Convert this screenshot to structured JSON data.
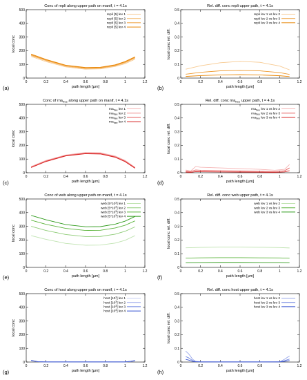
{
  "figure": {
    "panel_labels": [
      "(a)",
      "(b)",
      "(c)",
      "(d)",
      "(e)",
      "(f)",
      "(g)",
      "(h)"
    ]
  },
  "chart_data": [
    {
      "id": "a",
      "type": "line",
      "title": "Conc of repli along upper path on manif, t = 4.1s",
      "xlabel": "path length [µm]",
      "ylabel": "local conc",
      "xlim": [
        0,
        1.2
      ],
      "ylim": [
        0,
        500
      ],
      "xticks": [
        "0",
        "0.2",
        "0.4",
        "0.6",
        "0.8",
        "1",
        "1.2"
      ],
      "yticks": [
        "0",
        "100",
        "200",
        "300",
        "400",
        "500"
      ],
      "legend_position": "top-right",
      "x": [
        0.05,
        0.2,
        0.4,
        0.6,
        0.75,
        0.9,
        1.0,
        1.1
      ],
      "series": [
        {
          "name": "repli [5] lev 1",
          "color": "#f7c98f",
          "values": [
            158,
            120,
            82,
            65,
            67,
            85,
            105,
            138
          ]
        },
        {
          "name": "repli [5] lev 2",
          "color": "#f4b25e",
          "values": [
            165,
            127,
            87,
            70,
            72,
            90,
            112,
            146
          ]
        },
        {
          "name": "repli [5] lev 3",
          "color": "#ee9a30",
          "values": [
            170,
            132,
            91,
            74,
            76,
            94,
            117,
            151
          ]
        },
        {
          "name": "repli [5] lev 4",
          "color": "#e88400",
          "values": [
            175,
            136,
            94,
            77,
            79,
            97,
            121,
            155
          ]
        }
      ]
    },
    {
      "id": "b",
      "type": "line",
      "title": "Rel. diff. conc repli upper path, t = 4.1s",
      "xlabel": "path length [µm]",
      "ylabel": "local conc rel. diff.",
      "xlim": [
        0,
        1.2
      ],
      "ylim": [
        0,
        0.5
      ],
      "xticks": [
        "0",
        "0.2",
        "0.4",
        "0.6",
        "0.8",
        "1",
        "1.2"
      ],
      "yticks": [
        "0",
        "0.1",
        "0.2",
        "0.3",
        "0.4",
        "0.5"
      ],
      "legend_position": "top-right",
      "x": [
        0.05,
        0.2,
        0.4,
        0.6,
        0.8,
        1.0,
        1.1
      ],
      "series": [
        {
          "name": "repli lev 1 vs lev 2",
          "color": "#f7c98f",
          "values": [
            0.065,
            0.09,
            0.112,
            0.122,
            0.115,
            0.088,
            0.06
          ]
        },
        {
          "name": "repli lev 2 vs lev 3",
          "color": "#ee9a30",
          "values": [
            0.028,
            0.042,
            0.053,
            0.056,
            0.053,
            0.04,
            0.027
          ]
        },
        {
          "name": "repli lev 3 vs lev 4",
          "color": "#e88400",
          "values": [
            0.012,
            0.018,
            0.023,
            0.025,
            0.023,
            0.017,
            0.011
          ]
        }
      ]
    },
    {
      "id": "c",
      "type": "line",
      "title_parts": [
        "Conc of rna",
        "free",
        " along upper path on manif, t = 4.1s"
      ],
      "xlabel": "path length [µm]",
      "ylabel": "local conc",
      "xlim": [
        0,
        1.2
      ],
      "ylim": [
        0,
        500
      ],
      "xticks": [
        "0",
        "0.2",
        "0.4",
        "0.6",
        "0.8",
        "1",
        "1.2"
      ],
      "yticks": [
        "0",
        "100",
        "200",
        "300",
        "400",
        "500"
      ],
      "legend_position": "top-right",
      "legend_parts": {
        "base": "rna",
        "sub": "free",
        "suffix": [
          "lev 1",
          "lev 2",
          "lev 3",
          "lev 4"
        ]
      },
      "x": [
        0.05,
        0.2,
        0.4,
        0.6,
        0.75,
        0.9,
        1.0,
        1.1
      ],
      "series": [
        {
          "color": "#f5b5b5",
          "values": [
            45,
            90,
            130,
            148,
            146,
            122,
            90,
            40
          ]
        },
        {
          "color": "#ee8a8a",
          "values": [
            42,
            87,
            127,
            144,
            142,
            118,
            86,
            37
          ]
        },
        {
          "color": "#e55a5a",
          "values": [
            40,
            84,
            125,
            141,
            139,
            115,
            83,
            35
          ]
        },
        {
          "color": "#d82020",
          "values": [
            38,
            82,
            123,
            139,
            137,
            113,
            81,
            33
          ]
        }
      ]
    },
    {
      "id": "d",
      "type": "line",
      "title_parts": [
        "Rel. diff. conc rna",
        "free",
        " upper path, t = 4.1s"
      ],
      "xlabel": "path length [µm]",
      "ylabel": "local conc rel. diff.",
      "xlim": [
        0,
        1.2
      ],
      "ylim": [
        0,
        0.5
      ],
      "xticks": [
        "0",
        "0.2",
        "0.4",
        "0.6",
        "0.8",
        "1",
        "1.2"
      ],
      "yticks": [
        "0",
        "0.1",
        "0.2",
        "0.3",
        "0.4",
        "0.5"
      ],
      "legend_position": "top-right",
      "legend_parts": {
        "base": "rna",
        "sub": "free",
        "suffix": [
          "lev 1 vs lev 2",
          "lev 2 vs lev 3",
          "lev 3 vs lev 4"
        ]
      },
      "x": [
        0.05,
        0.1,
        0.15,
        0.2,
        0.4,
        0.6,
        0.8,
        0.95,
        1.05,
        1.1
      ],
      "series": [
        {
          "color": "#f5b5b5",
          "values": [
            0.02,
            0.012,
            0.045,
            0.04,
            0.035,
            0.03,
            0.025,
            0.018,
            0.025,
            0.06
          ]
        },
        {
          "color": "#e55a5a",
          "values": [
            0.012,
            0.008,
            0.02,
            0.018,
            0.015,
            0.012,
            0.01,
            0.008,
            0.015,
            0.035
          ]
        },
        {
          "color": "#d82020",
          "values": [
            0.005,
            0.003,
            0.008,
            0.007,
            0.006,
            0.005,
            0.004,
            0.003,
            0.006,
            0.015
          ]
        }
      ]
    },
    {
      "id": "e",
      "type": "line",
      "title": "Conc of web along upper path on manif, t = 4.1s",
      "xlabel": "path length [µm]",
      "ylabel": "local conc",
      "xlim": [
        0,
        1.2
      ],
      "ylim": [
        0,
        500
      ],
      "xticks": [
        "0",
        "0.2",
        "0.4",
        "0.6",
        "0.8",
        "1",
        "1.2"
      ],
      "yticks": [
        "0",
        "100",
        "200",
        "300",
        "400",
        "500"
      ],
      "legend_position": "top-right",
      "legend_parts": {
        "base": "web [5*10",
        "sup": "3",
        "close": "]",
        "suffix": [
          "lev 1",
          "lev 2",
          "lev 3",
          "lev 4"
        ]
      },
      "x": [
        0.05,
        0.2,
        0.4,
        0.6,
        0.75,
        0.9,
        1.0,
        1.1
      ],
      "series": [
        {
          "color": "#bfe3b0",
          "values": [
            232,
            205,
            175,
            162,
            163,
            178,
            198,
            232
          ]
        },
        {
          "color": "#8dcb75",
          "values": [
            300,
            270,
            240,
            225,
            226,
            243,
            264,
            296
          ]
        },
        {
          "color": "#5cb43c",
          "values": [
            345,
            315,
            285,
            270,
            271,
            288,
            308,
            340
          ]
        },
        {
          "color": "#2e9a1a",
          "values": [
            380,
            348,
            313,
            297,
            298,
            316,
            338,
            372
          ]
        }
      ]
    },
    {
      "id": "f",
      "type": "line",
      "title": "Rel. diff. conc web upper path, t = 4.1s",
      "xlabel": "path length [µm]",
      "ylabel": "local conc rel. diff.",
      "xlim": [
        0,
        1.2
      ],
      "ylim": [
        0,
        0.5
      ],
      "xticks": [
        "0",
        "0.2",
        "0.4",
        "0.6",
        "0.8",
        "1",
        "1.2"
      ],
      "yticks": [
        "0",
        "0.1",
        "0.2",
        "0.3",
        "0.4",
        "0.5"
      ],
      "legend_position": "top-right",
      "x": [
        0.05,
        0.2,
        0.4,
        0.6,
        0.8,
        1.0,
        1.1
      ],
      "series": [
        {
          "name": "web lev 1 vs lev 2",
          "color": "#bfe3b0",
          "values": [
            0.143,
            0.146,
            0.148,
            0.148,
            0.147,
            0.145,
            0.142
          ]
        },
        {
          "name": "web lev 2 vs lev 3",
          "color": "#5cb43c",
          "values": [
            0.068,
            0.07,
            0.071,
            0.071,
            0.07,
            0.069,
            0.067
          ]
        },
        {
          "name": "web lev 3 vs lev 4",
          "color": "#2e9a1a",
          "values": [
            0.034,
            0.035,
            0.036,
            0.036,
            0.035,
            0.035,
            0.034
          ]
        }
      ]
    },
    {
      "id": "g",
      "type": "line",
      "title": "Conc of host along upper path on manif, t = 4.1s",
      "xlabel": "path length [µm]",
      "ylabel": "local conc",
      "xlim": [
        0,
        1.2
      ],
      "ylim": [
        0,
        500
      ],
      "xticks": [
        "0",
        "0.2",
        "0.4",
        "0.6",
        "0.8",
        "1",
        "1.2"
      ],
      "yticks": [
        "0",
        "100",
        "200",
        "300",
        "400",
        "500"
      ],
      "legend_position": "top-right",
      "legend_parts": {
        "base": "host [10",
        "sup": "3",
        "close": "]",
        "suffix": [
          "lev 1",
          "lev 2",
          "lev 3",
          "lev 4"
        ]
      },
      "x": [
        0.05,
        0.08,
        0.12,
        0.2,
        0.4,
        0.6,
        0.8,
        1.0,
        1.05,
        1.1
      ],
      "series": [
        {
          "color": "#c5cdf2",
          "values": [
            9,
            6,
            2,
            1,
            1,
            1,
            1,
            1,
            3,
            8
          ]
        },
        {
          "color": "#97a6ea",
          "values": [
            10,
            7,
            2,
            1,
            1,
            1,
            1,
            1,
            4,
            9
          ]
        },
        {
          "color": "#6a80e0",
          "values": [
            11,
            7,
            2,
            1,
            1,
            1,
            1,
            1,
            4,
            10
          ]
        },
        {
          "color": "#3550d0",
          "values": [
            12,
            8,
            2,
            1,
            1,
            1,
            1,
            1,
            5,
            11
          ]
        }
      ]
    },
    {
      "id": "h",
      "type": "line",
      "title": "Rel. diff. conc host upper path, t = 4.1s",
      "xlabel": "path length [µm]",
      "ylabel": "local conc rel. diff.",
      "xlim": [
        0,
        1.2
      ],
      "ylim": [
        0,
        0.5
      ],
      "xticks": [
        "0",
        "0.2",
        "0.4",
        "0.6",
        "0.8",
        "1",
        "1.2"
      ],
      "yticks": [
        "0",
        "0.1",
        "0.2",
        "0.3",
        "0.4",
        "0.5"
      ],
      "legend_position": "top-right",
      "x": [
        0.05,
        0.08,
        0.12,
        0.15,
        0.2,
        0.4,
        0.6,
        0.8,
        1.0,
        1.05,
        1.1
      ],
      "series": [
        {
          "name": "host lev 1 vs lev 2",
          "color": "#97a6ea",
          "values": [
            0.08,
            0.06,
            0.02,
            0.005,
            0.002,
            0.001,
            0.001,
            0.001,
            0.002,
            0.02,
            0.045
          ]
        },
        {
          "name": "host lev 2 vs lev 3",
          "color": "#6a80e0",
          "values": [
            0.04,
            0.03,
            0.01,
            0.003,
            0.001,
            0.001,
            0.001,
            0.001,
            0.001,
            0.01,
            0.022
          ]
        },
        {
          "name": "host lev 3 vs lev 4",
          "color": "#3550d0",
          "values": [
            0.02,
            0.014,
            0.005,
            0.002,
            0.001,
            0.001,
            0.001,
            0.001,
            0.001,
            0.005,
            0.011
          ]
        }
      ]
    }
  ]
}
